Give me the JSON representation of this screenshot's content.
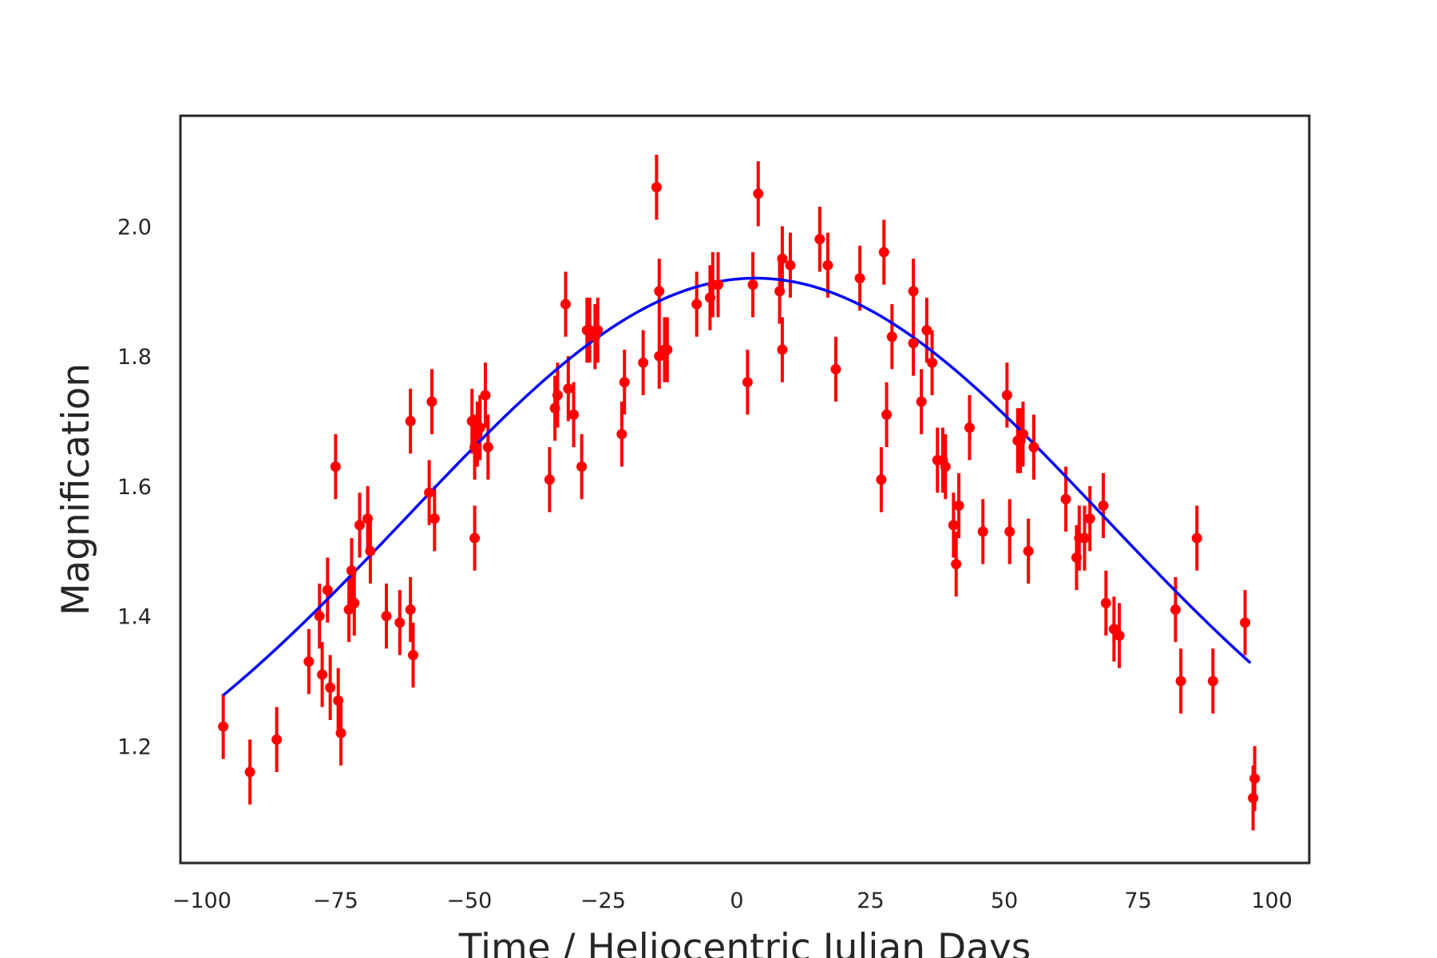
{
  "chart_data": {
    "type": "scatter",
    "title": "",
    "xlabel": "Time / Heliocentric Julian Days",
    "ylabel": "Magnification",
    "xlim": [
      -104,
      107
    ],
    "ylim": [
      1.02,
      2.17
    ],
    "xticks": [
      -100,
      -75,
      -50,
      -25,
      0,
      25,
      50,
      75,
      100
    ],
    "xtick_labels": [
      "−100",
      "−75",
      "−50",
      "−25",
      "0",
      "25",
      "50",
      "75",
      "100"
    ],
    "yticks": [
      1.2,
      1.4,
      1.6,
      1.8,
      2.0
    ],
    "ytick_labels": [
      "1.2",
      "1.4",
      "1.6",
      "1.8",
      "2.0"
    ],
    "grid": false,
    "legend": false,
    "series": [
      {
        "kind": "line",
        "color": "#0000ff",
        "model": "gaussian",
        "baseline": 0.99,
        "amplitude": 0.93,
        "center": 3.5,
        "sigma": 65,
        "x_range": [
          -96,
          96
        ]
      },
      {
        "kind": "errorbar",
        "color": "#ff0000",
        "points": [
          [
            -96,
            1.23,
            0.05
          ],
          [
            -91,
            1.16,
            0.05
          ],
          [
            -86,
            1.21,
            0.05
          ],
          [
            -80,
            1.33,
            0.05
          ],
          [
            -78,
            1.4,
            0.05
          ],
          [
            -77.5,
            1.31,
            0.05
          ],
          [
            -76.5,
            1.44,
            0.05
          ],
          [
            -76,
            1.29,
            0.05
          ],
          [
            -75,
            1.63,
            0.05
          ],
          [
            -74.5,
            1.27,
            0.05
          ],
          [
            -74,
            1.22,
            0.05
          ],
          [
            -72.5,
            1.41,
            0.05
          ],
          [
            -72,
            1.47,
            0.05
          ],
          [
            -71.5,
            1.42,
            0.05
          ],
          [
            -70.5,
            1.54,
            0.05
          ],
          [
            -69,
            1.55,
            0.05
          ],
          [
            -68.5,
            1.5,
            0.05
          ],
          [
            -65.5,
            1.4,
            0.05
          ],
          [
            -63,
            1.39,
            0.05
          ],
          [
            -61,
            1.41,
            0.05
          ],
          [
            -61,
            1.7,
            0.05
          ],
          [
            -60.5,
            1.34,
            0.05
          ],
          [
            -57.5,
            1.59,
            0.05
          ],
          [
            -57,
            1.73,
            0.05
          ],
          [
            -56.5,
            1.55,
            0.05
          ],
          [
            -49.5,
            1.7,
            0.05
          ],
          [
            -49,
            1.52,
            0.05
          ],
          [
            -49,
            1.66,
            0.05
          ],
          [
            -48.5,
            1.68,
            0.05
          ],
          [
            -48,
            1.69,
            0.05
          ],
          [
            -47,
            1.74,
            0.05
          ],
          [
            -46.5,
            1.66,
            0.05
          ],
          [
            -35,
            1.61,
            0.05
          ],
          [
            -34,
            1.72,
            0.05
          ],
          [
            -33.5,
            1.74,
            0.05
          ],
          [
            -32,
            1.88,
            0.05
          ],
          [
            -31.5,
            1.75,
            0.05
          ],
          [
            -30.5,
            1.71,
            0.05
          ],
          [
            -29,
            1.63,
            0.05
          ],
          [
            -28,
            1.84,
            0.05
          ],
          [
            -27.5,
            1.84,
            0.05
          ],
          [
            -26.5,
            1.83,
            0.05
          ],
          [
            -26,
            1.84,
            0.05
          ],
          [
            -21.5,
            1.68,
            0.05
          ],
          [
            -21,
            1.76,
            0.05
          ],
          [
            -17.5,
            1.79,
            0.05
          ],
          [
            -15,
            2.06,
            0.05
          ],
          [
            -14.5,
            1.9,
            0.05
          ],
          [
            -14.5,
            1.8,
            0.05
          ],
          [
            -13.5,
            1.81,
            0.05
          ],
          [
            -13,
            1.81,
            0.05
          ],
          [
            -7.5,
            1.88,
            0.05
          ],
          [
            -5,
            1.89,
            0.05
          ],
          [
            -4.5,
            1.91,
            0.05
          ],
          [
            -3.5,
            1.91,
            0.05
          ],
          [
            2,
            1.76,
            0.05
          ],
          [
            3,
            1.91,
            0.05
          ],
          [
            4,
            2.05,
            0.05
          ],
          [
            8,
            1.9,
            0.05
          ],
          [
            8.5,
            1.95,
            0.05
          ],
          [
            8.5,
            1.81,
            0.05
          ],
          [
            10,
            1.94,
            0.05
          ],
          [
            15.5,
            1.98,
            0.05
          ],
          [
            17,
            1.94,
            0.05
          ],
          [
            18.5,
            1.78,
            0.05
          ],
          [
            23,
            1.92,
            0.05
          ],
          [
            27,
            1.61,
            0.05
          ],
          [
            27.5,
            1.96,
            0.05
          ],
          [
            28,
            1.71,
            0.05
          ],
          [
            29,
            1.83,
            0.05
          ],
          [
            33,
            1.9,
            0.05
          ],
          [
            33,
            1.82,
            0.05
          ],
          [
            34.5,
            1.73,
            0.05
          ],
          [
            35.5,
            1.84,
            0.05
          ],
          [
            36.5,
            1.79,
            0.05
          ],
          [
            37.5,
            1.64,
            0.05
          ],
          [
            38.5,
            1.64,
            0.05
          ],
          [
            39,
            1.63,
            0.05
          ],
          [
            40.5,
            1.54,
            0.05
          ],
          [
            41,
            1.48,
            0.05
          ],
          [
            41.5,
            1.57,
            0.05
          ],
          [
            43.5,
            1.69,
            0.05
          ],
          [
            46,
            1.53,
            0.05
          ],
          [
            50.5,
            1.74,
            0.05
          ],
          [
            51,
            1.53,
            0.05
          ],
          [
            52.5,
            1.67,
            0.05
          ],
          [
            53,
            1.67,
            0.05
          ],
          [
            53.5,
            1.68,
            0.05
          ],
          [
            54.5,
            1.5,
            0.05
          ],
          [
            55.5,
            1.66,
            0.05
          ],
          [
            61.5,
            1.58,
            0.05
          ],
          [
            63.5,
            1.49,
            0.05
          ],
          [
            64,
            1.52,
            0.05
          ],
          [
            65,
            1.52,
            0.05
          ],
          [
            66,
            1.55,
            0.05
          ],
          [
            68.5,
            1.57,
            0.05
          ],
          [
            69,
            1.42,
            0.05
          ],
          [
            70.5,
            1.38,
            0.05
          ],
          [
            71.5,
            1.37,
            0.05
          ],
          [
            82,
            1.41,
            0.05
          ],
          [
            83,
            1.3,
            0.05
          ],
          [
            86,
            1.52,
            0.05
          ],
          [
            89,
            1.3,
            0.05
          ],
          [
            95,
            1.39,
            0.05
          ],
          [
            96.5,
            1.12,
            0.05
          ],
          [
            96.8,
            1.15,
            0.05
          ]
        ]
      }
    ]
  }
}
